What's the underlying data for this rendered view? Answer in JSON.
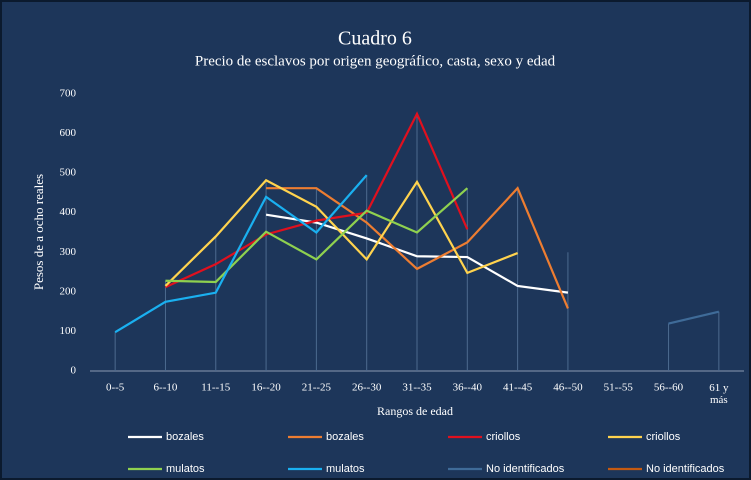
{
  "chart_data": {
    "type": "line",
    "title": "Cuadro 6",
    "subtitle": "Precio de esclavos por origen geográfico, casta, sexo y edad",
    "y_label": "Pesos de a ocho reales",
    "x_label": "Rangos de edad",
    "categories": [
      "0--5",
      "6--10",
      "11--15",
      "16--20",
      "21--25",
      "26--30",
      "31--35",
      "36--40",
      "41--45",
      "46--50",
      "51--55",
      "56--60",
      "61 y más"
    ],
    "ylim": [
      0,
      700
    ],
    "yticks": [
      0,
      100,
      200,
      300,
      400,
      500,
      600,
      700
    ],
    "drop_lines": true,
    "series": [
      {
        "name": "bozales",
        "color": "#ffffff",
        "values": [
          null,
          null,
          null,
          395,
          375,
          335,
          290,
          288,
          215,
          198,
          null,
          null,
          null
        ]
      },
      {
        "name": "bozales",
        "color": "#ed7d31",
        "values": [
          null,
          null,
          null,
          462,
          462,
          375,
          258,
          325,
          462,
          158,
          null,
          null,
          null
        ]
      },
      {
        "name": "criollos",
        "color": "#e0101e",
        "values": [
          null,
          212,
          270,
          345,
          380,
          400,
          650,
          358,
          null,
          null,
          null,
          null,
          null
        ]
      },
      {
        "name": "criollos",
        "color": "#ffd34e",
        "values": [
          null,
          215,
          340,
          482,
          415,
          282,
          478,
          248,
          298,
          null,
          null,
          null,
          null
        ]
      },
      {
        "name": "mulatos",
        "color": "#8fd14f",
        "values": [
          null,
          228,
          225,
          352,
          282,
          405,
          350,
          462,
          null,
          null,
          null,
          null,
          null
        ]
      },
      {
        "name": "mulatos",
        "color": "#1ab0f0",
        "values": [
          98,
          175,
          198,
          440,
          350,
          495,
          null,
          null,
          null,
          null,
          null,
          null,
          null
        ]
      },
      {
        "name": "No identificados",
        "color": "#3f6b98",
        "values": [
          null,
          null,
          null,
          null,
          null,
          null,
          null,
          null,
          null,
          300,
          null,
          120,
          150
        ]
      },
      {
        "name": "No identificados",
        "color": "#c55a11",
        "values": [
          null,
          null,
          null,
          null,
          null,
          null,
          null,
          null,
          null,
          null,
          null,
          null,
          null
        ]
      }
    ]
  }
}
